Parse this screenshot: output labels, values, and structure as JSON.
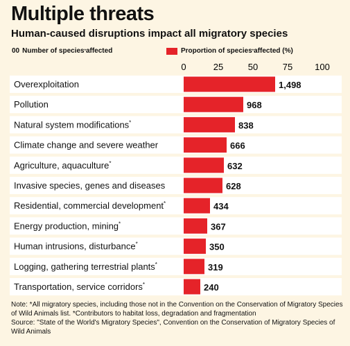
{
  "header": {
    "title": "Multiple threats",
    "subtitle": "Human-caused disruptions impact all migratory species"
  },
  "legend": {
    "number_key_sample": "00",
    "number_key_label": "Number of species",
    "number_key_sup": "*",
    "number_key_suffix": " affected",
    "proportion_label": "Proportion of species",
    "proportion_sup": "*",
    "proportion_suffix": " affected (%)"
  },
  "colors": {
    "bar": "#e52329",
    "row_background": "#ffffff",
    "page_background": "#fdf5e3"
  },
  "chart_data": {
    "type": "bar",
    "orientation": "horizontal",
    "title": "Multiple threats",
    "subtitle": "Human-caused disruptions impact all migratory species",
    "xlabel": "Proportion of species* affected (%)",
    "xlim": [
      0,
      100
    ],
    "xticks": [
      "0",
      "25",
      "50",
      "75",
      "100"
    ],
    "grid": false,
    "series": [
      {
        "name": "Proportion of species* affected (%)",
        "values": [
          66,
          43,
          37,
          31,
          29,
          28,
          19,
          17,
          16,
          15,
          12
        ]
      }
    ],
    "categories": [
      {
        "label": "Overexploitation",
        "sup": "",
        "count": "1,498"
      },
      {
        "label": "Pollution",
        "sup": "",
        "count": "968"
      },
      {
        "label": "Natural system modifications",
        "sup": "*",
        "count": "838"
      },
      {
        "label": "Climate change and severe weather",
        "sup": "",
        "count": "666"
      },
      {
        "label": "Agriculture, aquaculture",
        "sup": "*",
        "count": "632"
      },
      {
        "label": "Invasive species, genes and diseases",
        "sup": "",
        "count": "628"
      },
      {
        "label": "Residential, commercial development",
        "sup": "*",
        "count": "434"
      },
      {
        "label": "Energy production, mining",
        "sup": "*",
        "count": "367"
      },
      {
        "label": "Human intrusions, disturbance",
        "sup": "*",
        "count": "350"
      },
      {
        "label": "Logging, gathering terrestrial plants",
        "sup": "*",
        "count": "319"
      },
      {
        "label": "Transportation, service corridors",
        "sup": "*",
        "count": "240"
      }
    ]
  },
  "notes": {
    "note": "Note: *All migratory species, including those not in the Convention on the Conservation of Migratory Species of Wild Animals list. *Contributors to habitat loss, degradation and fragmentation",
    "source": "Source: \"State of the World's Migratory Species\", Convention on the Conservation of Migratory Species of Wild Animals"
  }
}
